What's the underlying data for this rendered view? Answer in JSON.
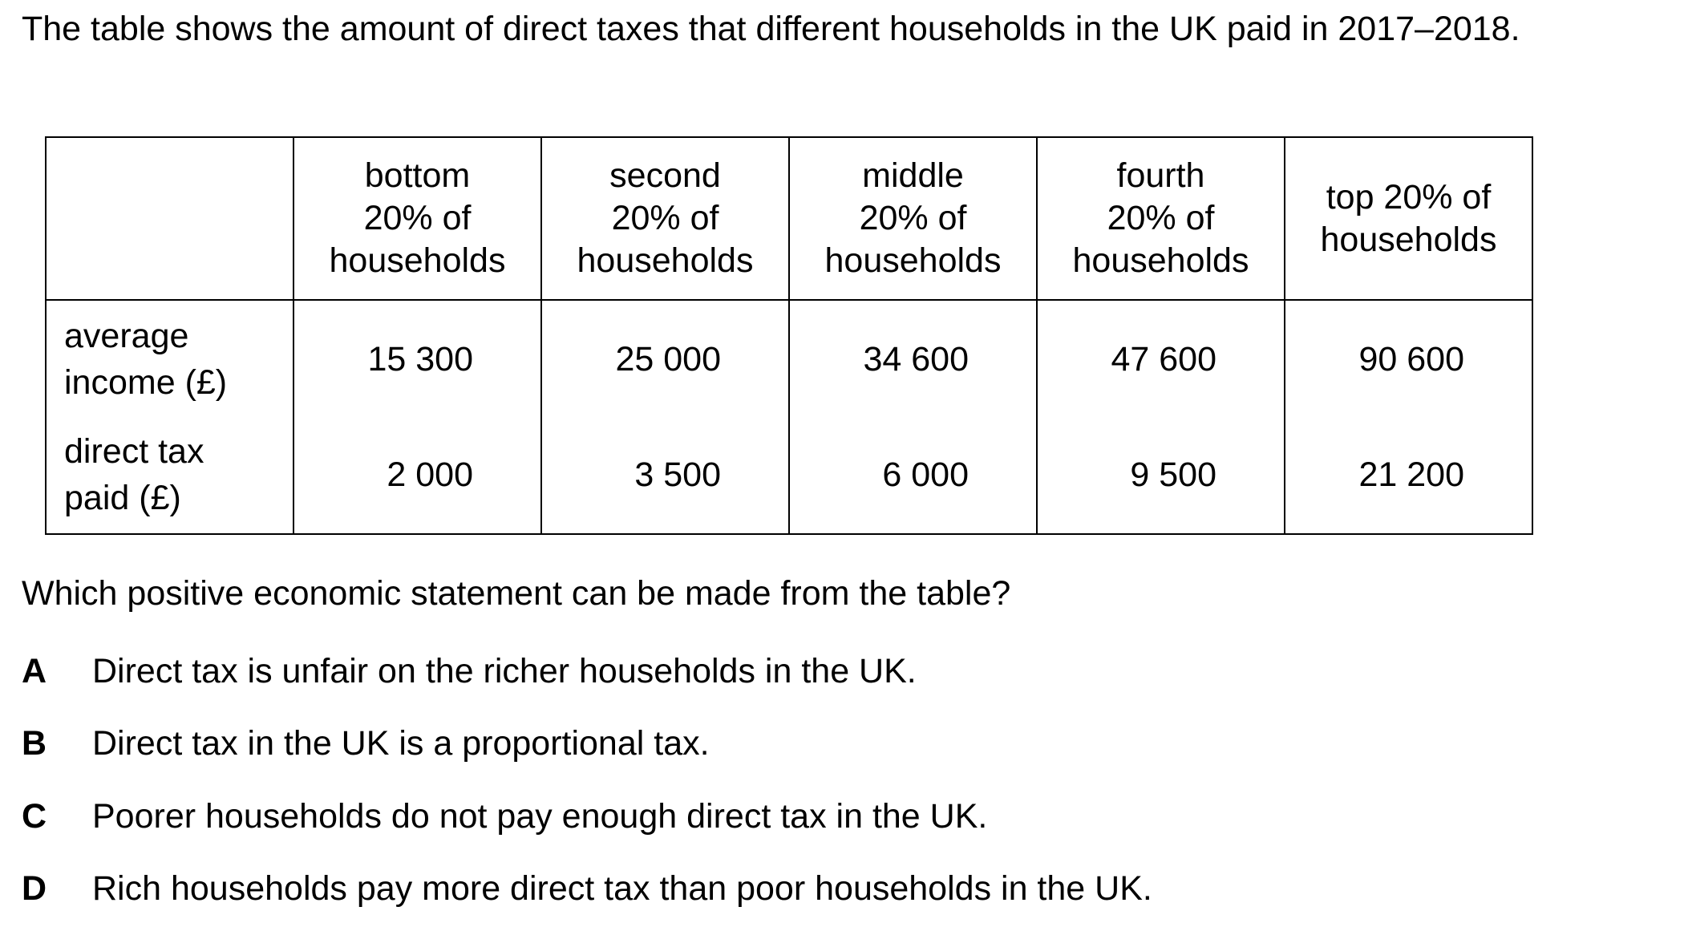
{
  "intro": "The table shows the amount of direct taxes that different households in the UK paid in 2017–2018.",
  "table": {
    "columns": [
      {
        "line1": "bottom",
        "line2": "20% of",
        "line3": "households"
      },
      {
        "line1": "second",
        "line2": "20% of",
        "line3": "households"
      },
      {
        "line1": "middle",
        "line2": "20% of",
        "line3": "households"
      },
      {
        "line1": "fourth",
        "line2": "20% of",
        "line3": "households"
      },
      {
        "line1": "top 20% of",
        "line2": "households"
      }
    ],
    "rows": [
      {
        "label_line1": "average",
        "label_line2": "income (£)",
        "values": [
          "15 300",
          "25 000",
          "34 600",
          "47 600",
          "90 600"
        ]
      },
      {
        "label_line1": "direct tax",
        "label_line2": "paid (£)",
        "values": [
          "2 000",
          "3 500",
          "6 000",
          "9 500",
          "21 200"
        ]
      }
    ]
  },
  "question": "Which positive economic statement can be made from the table?",
  "options": [
    {
      "letter": "A",
      "text": "Direct tax is unfair on the richer households in the UK."
    },
    {
      "letter": "B",
      "text": "Direct tax in the UK is a proportional tax."
    },
    {
      "letter": "C",
      "text": "Poorer households do not pay enough direct tax in the UK."
    },
    {
      "letter": "D",
      "text": "Rich households pay more direct tax than poor households in the UK."
    }
  ]
}
